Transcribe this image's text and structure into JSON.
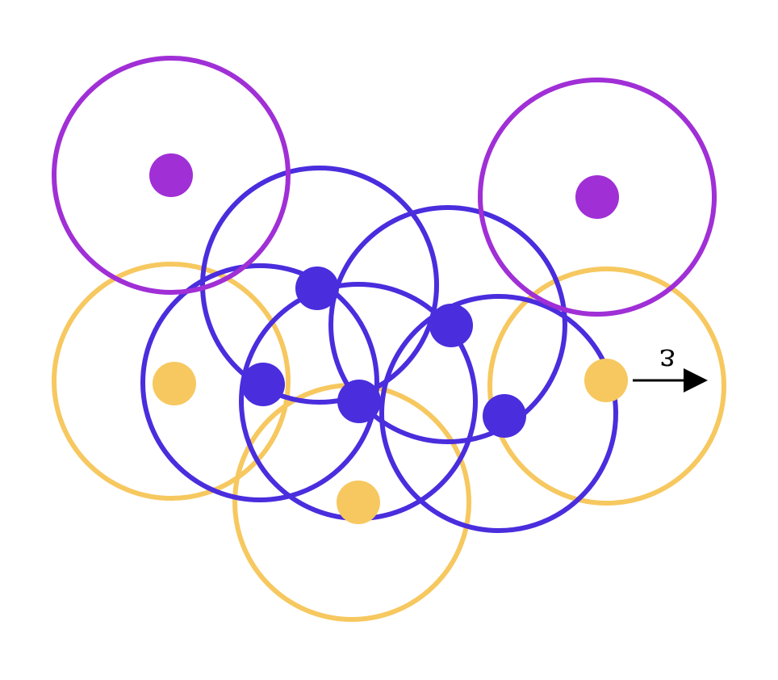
{
  "colors": {
    "core": "#4a2ddd",
    "border": "#f6c85f",
    "noise": "#a02fd6",
    "arrow": "#000000"
  },
  "legend_labels": {
    "epsilon": "ε"
  },
  "points": [
    {
      "id": "noise-1",
      "role": "noise"
    },
    {
      "id": "noise-2",
      "role": "noise"
    },
    {
      "id": "core-1",
      "role": "core"
    },
    {
      "id": "core-2",
      "role": "core"
    },
    {
      "id": "core-3",
      "role": "core"
    },
    {
      "id": "core-4",
      "role": "core"
    },
    {
      "id": "core-5",
      "role": "core"
    },
    {
      "id": "border-1",
      "role": "border"
    },
    {
      "id": "border-2",
      "role": "border"
    },
    {
      "id": "border-3",
      "role": "border"
    }
  ]
}
